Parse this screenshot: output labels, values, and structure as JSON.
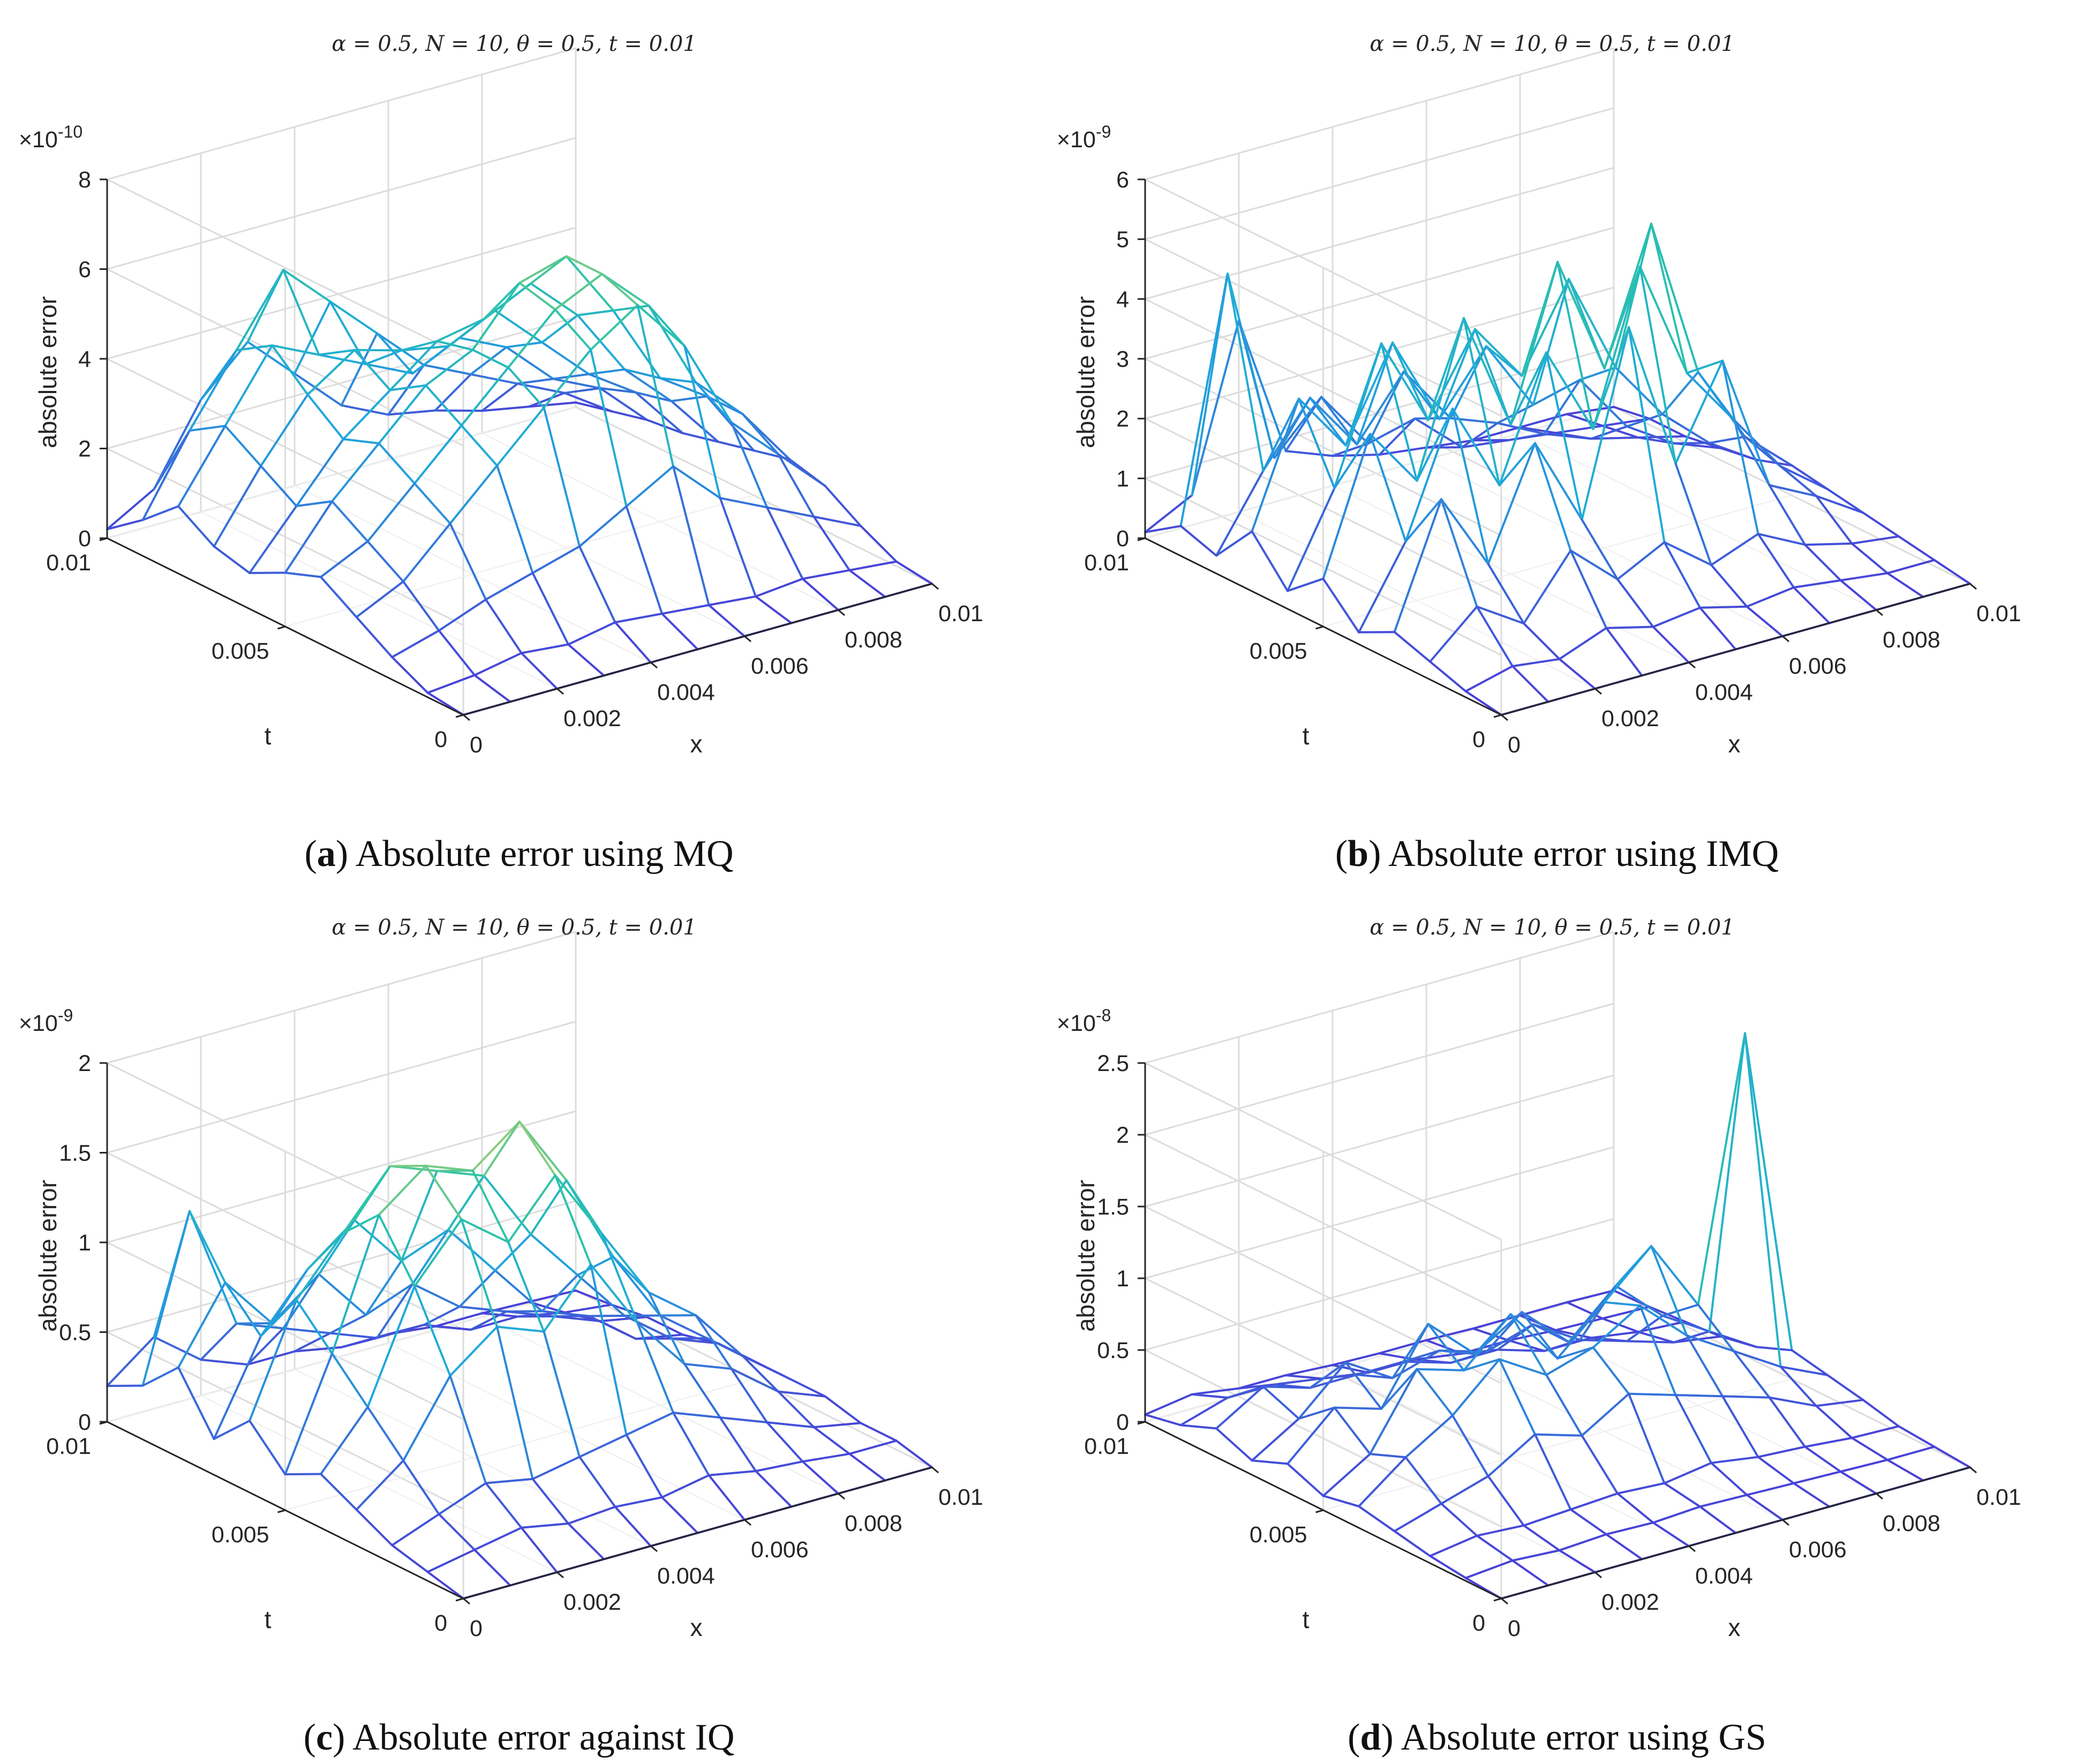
{
  "colors": {
    "low": "#4a40d8",
    "mid": "#1fa8dc",
    "midhigh": "#2cc4a8",
    "high": "#f5d64a",
    "grid": "#dcdcdc",
    "axis": "#262626"
  },
  "chart_data": [
    {
      "type": "surface-mesh",
      "panel": "a",
      "title": "α = 0.5, N = 10, θ = 0.5, t = 0.01",
      "xlabel": "x",
      "ylabel": "t",
      "zlabel": "absolute error",
      "exponent": "×10-10",
      "exponent_base": "×10",
      "exponent_power": "-10",
      "x_ticks": [
        "0",
        "0.002",
        "0.004",
        "0.006",
        "0.008",
        "0.01"
      ],
      "t_ticks": [
        "0",
        "0.005",
        "0.01"
      ],
      "z_ticks": [
        "0",
        "2",
        "4",
        "6",
        "8"
      ],
      "zlim": [
        0,
        8
      ],
      "xlim": [
        0,
        0.01
      ],
      "tlim": [
        0,
        0.01
      ],
      "grid_size": 11,
      "values": [
        [
          0,
          0,
          0,
          0,
          0,
          0,
          0,
          0,
          0,
          0,
          0
        ],
        [
          0.1,
          0.2,
          0.4,
          0.3,
          0.5,
          0.4,
          0.3,
          0.2,
          0.3,
          0.2,
          0.1
        ],
        [
          0.5,
          0.8,
          1.2,
          1.5,
          1.8,
          2.4,
          3.0,
          2.0,
          1.5,
          1.0,
          0.5
        ],
        [
          1.0,
          1.5,
          2.5,
          3.5,
          4.5,
          5.5,
          6.2,
          5.0,
          3.0,
          2.0,
          1.0
        ],
        [
          1.5,
          2.0,
          3.0,
          4.0,
          5.0,
          6.0,
          6.5,
          5.5,
          3.5,
          2.5,
          1.2
        ],
        [
          1.2,
          2.5,
          3.5,
          4.5,
          5.0,
          6.2,
          6.5,
          5.0,
          3.2,
          2.5,
          1.0
        ],
        [
          0.8,
          2.0,
          3.2,
          4.0,
          4.8,
          5.0,
          5.5,
          4.5,
          3.0,
          2.0,
          0.8
        ],
        [
          1.0,
          2.5,
          3.8,
          4.5,
          4.2,
          4.0,
          4.5,
          3.5,
          2.5,
          1.8,
          0.6
        ],
        [
          1.5,
          3.0,
          4.5,
          4.0,
          3.5,
          3.0,
          3.5,
          3.0,
          2.0,
          1.5,
          0.5
        ],
        [
          0.8,
          2.5,
          4.0,
          5.5,
          4.5,
          3.5,
          2.5,
          2.0,
          1.5,
          1.0,
          0.3
        ],
        [
          0.2,
          0.8,
          2.5,
          3.5,
          2.5,
          1.5,
          1.0,
          0.8,
          0.5,
          0.3,
          0.1
        ]
      ]
    },
    {
      "type": "surface-mesh",
      "panel": "b",
      "title": "α = 0.5, N = 10, θ = 0.5, t = 0.01",
      "xlabel": "x",
      "ylabel": "t",
      "zlabel": "absolute error",
      "exponent": "×10-9",
      "exponent_base": "×10",
      "exponent_power": "-9",
      "x_ticks": [
        "0",
        "0.002",
        "0.004",
        "0.006",
        "0.008",
        "0.01"
      ],
      "t_ticks": [
        "0",
        "0.005",
        "0.01"
      ],
      "z_ticks": [
        "0",
        "1",
        "2",
        "3",
        "4",
        "5",
        "6"
      ],
      "zlim": [
        0,
        6
      ],
      "xlim": [
        0,
        0.01
      ],
      "tlim": [
        0,
        0.01
      ],
      "grid_size": 11,
      "values": [
        [
          0,
          0,
          0,
          0,
          0,
          0,
          0,
          0,
          0,
          0,
          0
        ],
        [
          0.1,
          0.3,
          0.2,
          0.5,
          0.3,
          0.4,
          0.2,
          0.3,
          0.2,
          0.1,
          0.1
        ],
        [
          0.3,
          1.0,
          0.5,
          1.5,
          0.8,
          1.2,
          0.6,
          0.9,
          0.5,
          0.3,
          0.2
        ],
        [
          0.5,
          2.5,
          1.2,
          3.0,
          1.5,
          4.5,
          2.0,
          3.5,
          1.2,
          0.8,
          0.3
        ],
        [
          0.2,
          1.5,
          3.5,
          2.0,
          4.0,
          2.5,
          5.0,
          3.0,
          2.0,
          1.0,
          0.4
        ],
        [
          0.8,
          3.0,
          2.0,
          4.5,
          2.5,
          5.0,
          3.0,
          5.2,
          2.5,
          1.2,
          0.5
        ],
        [
          0.3,
          1.8,
          4.0,
          2.5,
          3.8,
          2.8,
          4.2,
          2.5,
          1.5,
          0.8,
          0.3
        ],
        [
          1.0,
          3.0,
          2.0,
          3.5,
          2.0,
          3.0,
          1.8,
          2.0,
          1.0,
          0.5,
          0.2
        ],
        [
          0.3,
          1.5,
          2.5,
          1.5,
          2.5,
          1.5,
          1.2,
          0.8,
          0.5,
          0.3,
          0.1
        ],
        [
          0.5,
          4.5,
          1.2,
          2.0,
          1.0,
          1.2,
          0.5,
          0.4,
          0.3,
          0.2,
          0.1
        ],
        [
          0.1,
          0.5,
          3.2,
          0.8,
          0.5,
          0.3,
          0.2,
          0.1,
          0.1,
          0.1,
          0.0
        ]
      ]
    },
    {
      "type": "surface-mesh",
      "panel": "c",
      "title": "α = 0.5, N = 10, θ = 0.5, t = 0.01",
      "xlabel": "x",
      "ylabel": "t",
      "zlabel": "absolute error",
      "exponent": "×10-9",
      "exponent_base": "×10",
      "exponent_power": "-9",
      "x_ticks": [
        "0",
        "0.002",
        "0.004",
        "0.006",
        "0.008",
        "0.01"
      ],
      "t_ticks": [
        "0",
        "0.005",
        "0.01"
      ],
      "z_ticks": [
        "0",
        "0.5",
        "1",
        "1.5",
        "2"
      ],
      "zlim": [
        0,
        2
      ],
      "xlim": [
        0,
        0.01
      ],
      "tlim": [
        0,
        0.01
      ],
      "grid_size": 11,
      "values": [
        [
          0,
          0,
          0,
          0,
          0,
          0,
          0,
          0,
          0,
          0,
          0
        ],
        [
          0.05,
          0.1,
          0.15,
          0.1,
          0.12,
          0.1,
          0.15,
          0.1,
          0.08,
          0.05,
          0.05
        ],
        [
          0.1,
          0.2,
          0.3,
          0.25,
          0.3,
          0.35,
          0.4,
          0.3,
          0.2,
          0.1,
          0.05
        ],
        [
          0.2,
          0.4,
          0.8,
          1.0,
          0.9,
          1.2,
          0.8,
          0.5,
          0.4,
          0.2,
          0.1
        ],
        [
          0.3,
          0.6,
          1.2,
          1.5,
          1.3,
          1.6,
          1.2,
          0.8,
          0.6,
          0.3,
          0.1
        ],
        [
          0.2,
          0.8,
          1.5,
          1.7,
          1.6,
          1.8,
          1.4,
          0.9,
          0.5,
          0.3,
          0.1
        ],
        [
          0.4,
          1.0,
          1.3,
          1.6,
          1.5,
          1.4,
          1.0,
          0.7,
          0.4,
          0.2,
          0.1
        ],
        [
          0.2,
          0.7,
          1.0,
          1.2,
          0.9,
          1.0,
          0.7,
          0.4,
          0.3,
          0.1,
          0.05
        ],
        [
          0.5,
          0.9,
          0.6,
          0.8,
          0.5,
          0.6,
          0.4,
          0.3,
          0.2,
          0.1,
          0.05
        ],
        [
          0.3,
          1.2,
          0.5,
          0.4,
          0.3,
          0.2,
          0.2,
          0.1,
          0.1,
          0.05,
          0.02
        ],
        [
          0.2,
          0.4,
          0.2,
          0.1,
          0.1,
          0.05,
          0.05,
          0.02,
          0.02,
          0.01,
          0.0
        ]
      ]
    },
    {
      "type": "surface-mesh",
      "panel": "d",
      "title": "α = 0.5, N = 10, θ = 0.5, t = 0.01",
      "xlabel": "x",
      "ylabel": "t",
      "zlabel": "absolute error",
      "exponent": "×10-8",
      "exponent_base": "×10",
      "exponent_power": "-8",
      "x_ticks": [
        "0",
        "0.002",
        "0.004",
        "0.006",
        "0.008",
        "0.01"
      ],
      "t_ticks": [
        "0",
        "0.005",
        "0.01"
      ],
      "z_ticks": [
        "0",
        "0.5",
        "1",
        "1.5",
        "2",
        "2.5"
      ],
      "zlim": [
        0,
        2.5
      ],
      "xlim": [
        0,
        0.01
      ],
      "tlim": [
        0,
        0.01
      ],
      "grid_size": 11,
      "values": [
        [
          0,
          0,
          0,
          0,
          0,
          0,
          0,
          0,
          0,
          0,
          0
        ],
        [
          0.02,
          0.05,
          0.03,
          0.05,
          0.04,
          0.06,
          0.05,
          0.04,
          0.03,
          0.02,
          0.02
        ],
        [
          0.05,
          0.1,
          0.08,
          0.1,
          0.12,
          0.1,
          0.15,
          0.1,
          0.08,
          0.05,
          0.04
        ],
        [
          0.1,
          0.2,
          0.3,
          0.5,
          0.4,
          0.6,
          0.5,
          0.4,
          0.3,
          0.15,
          0.1
        ],
        [
          0.15,
          0.4,
          0.6,
          0.9,
          0.7,
          0.8,
          1.0,
          0.7,
          0.5,
          0.3,
          0.15
        ],
        [
          0.1,
          0.3,
          0.8,
          0.7,
          1.0,
          0.6,
          0.9,
          1.2,
          0.7,
          2.5,
          0.2
        ],
        [
          0.2,
          0.5,
          0.4,
          0.9,
          0.6,
          0.8,
          0.5,
          0.8,
          0.5,
          0.3,
          0.1
        ],
        [
          0.1,
          0.3,
          0.6,
          0.4,
          0.5,
          0.4,
          0.5,
          0.3,
          0.2,
          0.1,
          0.05
        ],
        [
          0.2,
          0.4,
          0.3,
          0.3,
          0.3,
          0.2,
          0.2,
          0.1,
          0.1,
          0.05,
          0.03
        ],
        [
          0.1,
          0.2,
          0.2,
          0.15,
          0.1,
          0.1,
          0.05,
          0.05,
          0.03,
          0.02,
          0.01
        ],
        [
          0.05,
          0.1,
          0.05,
          0.05,
          0.03,
          0.02,
          0.02,
          0.01,
          0.01,
          0.01,
          0.0
        ]
      ]
    }
  ],
  "captions": [
    {
      "letter": "a",
      "text": "Absolute error using MQ"
    },
    {
      "letter": "b",
      "text": "Absolute error using IMQ"
    },
    {
      "letter": "c",
      "text": "Absolute error against IQ"
    },
    {
      "letter": "d",
      "text": "Absolute error using GS"
    }
  ]
}
